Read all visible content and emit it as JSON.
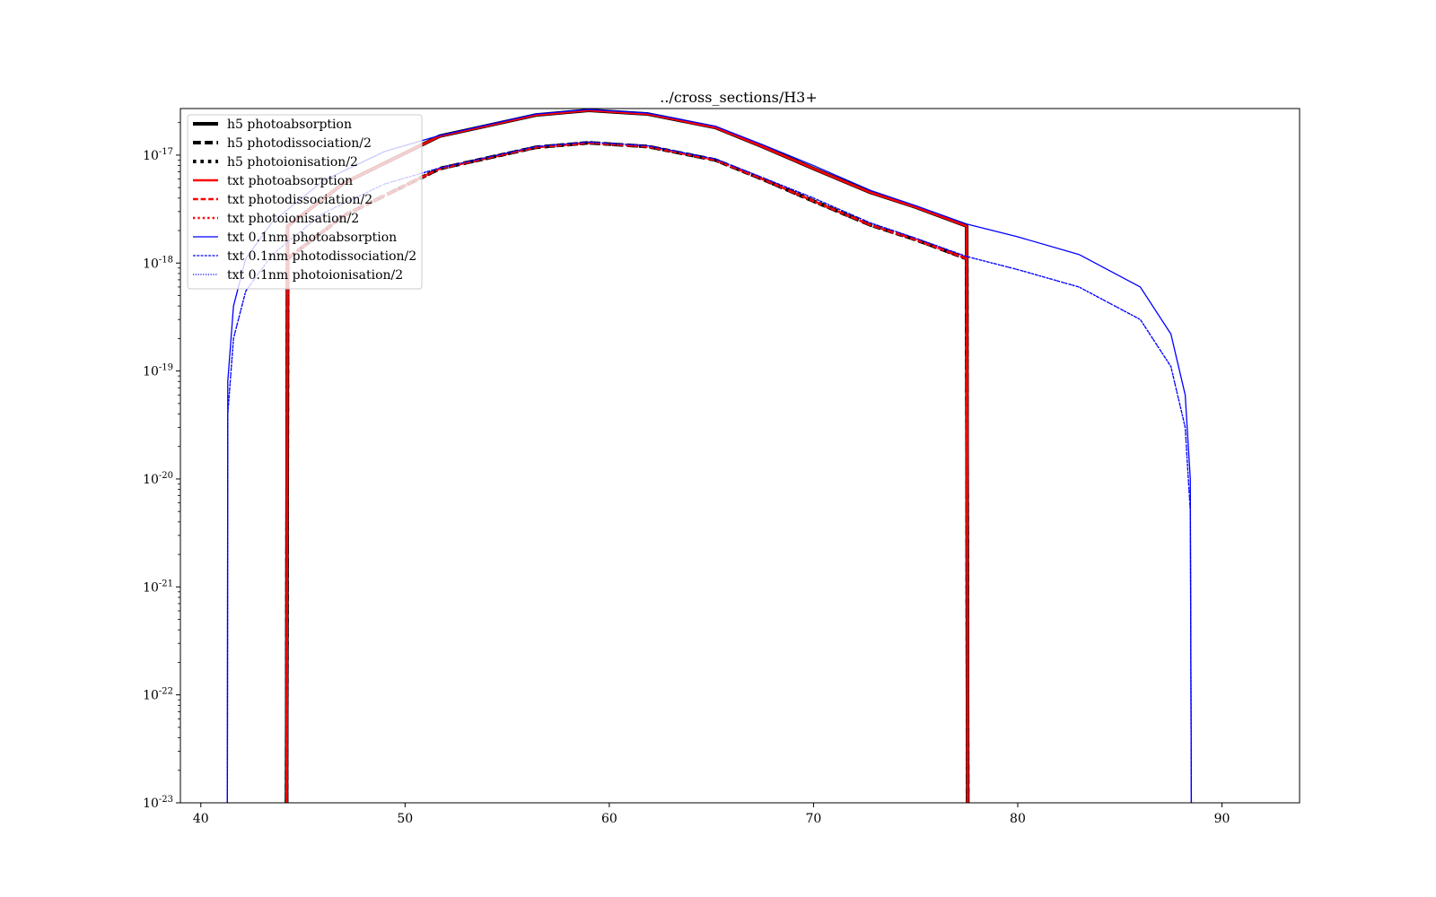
{
  "chart_data": {
    "type": "line",
    "title": "../cross_sections/H3+",
    "xlabel": "",
    "ylabel": "",
    "xlim": [
      39,
      93.8
    ],
    "ylim": [
      1e-23,
      2.7e-17
    ],
    "yscale": "log",
    "grid": false,
    "legend_position": "upper-left",
    "x_ticks": [
      40,
      50,
      60,
      70,
      80,
      90
    ],
    "y_ticks": [
      {
        "value": 1e-23,
        "base": "10",
        "exp": "-23"
      },
      {
        "value": 1e-22,
        "base": "10",
        "exp": "-22"
      },
      {
        "value": 1e-21,
        "base": "10",
        "exp": "-21"
      },
      {
        "value": 1e-20,
        "base": "10",
        "exp": "-20"
      },
      {
        "value": 1e-19,
        "base": "10",
        "exp": "-19"
      },
      {
        "value": 1e-18,
        "base": "10",
        "exp": "-18"
      },
      {
        "value": 1e-17,
        "base": "10",
        "exp": "-17"
      }
    ],
    "series": [
      {
        "name": "h5 photoabsorption",
        "color": "#000000",
        "style": "solid",
        "width": 4,
        "x": [
          44.2,
          44.25,
          47,
          51.7,
          56.4,
          59,
          61.9,
          65.2,
          67.5,
          70,
          72.8,
          75,
          77.5,
          77.55
        ],
        "y": [
          1e-23,
          2.2e-18,
          5.5e-18,
          1.5e-17,
          2.35e-17,
          2.6e-17,
          2.4e-17,
          1.8e-17,
          1.2e-17,
          7.5e-18,
          4.5e-18,
          3.3e-18,
          2.2e-18,
          1e-23
        ]
      },
      {
        "name": "h5 photodissociation/2",
        "color": "#000000",
        "style": "dashed",
        "width": 4,
        "x": [
          44.2,
          44.25,
          47,
          51.7,
          56.4,
          59,
          61.9,
          65.2,
          67.5,
          70,
          72.8,
          75,
          77.5,
          77.55
        ],
        "y": [
          1e-23,
          1.1e-18,
          2.75e-18,
          7.5e-18,
          1.18e-17,
          1.3e-17,
          1.2e-17,
          9e-18,
          6e-18,
          3.75e-18,
          2.25e-18,
          1.65e-18,
          1.1e-18,
          1e-23
        ]
      },
      {
        "name": "h5 photoionisation/2",
        "color": "#000000",
        "style": "dotted",
        "width": 4,
        "x": [
          44.2,
          44.25,
          47,
          51.7,
          56.4,
          59,
          61.9,
          65.2,
          67.5,
          70,
          72.8,
          75,
          77.5,
          77.55
        ],
        "y": [
          1e-23,
          1.1e-18,
          2.75e-18,
          7.5e-18,
          1.18e-17,
          1.3e-17,
          1.2e-17,
          9e-18,
          6e-18,
          3.75e-18,
          2.25e-18,
          1.65e-18,
          1.1e-18,
          1e-23
        ]
      },
      {
        "name": "txt photoabsorption",
        "color": "#ff0000",
        "style": "solid",
        "width": 2.6,
        "x": [
          44.2,
          44.25,
          47,
          51.7,
          56.4,
          59,
          61.9,
          65.2,
          67.5,
          70,
          72.8,
          75,
          77.5,
          77.55
        ],
        "y": [
          1e-23,
          2.2e-18,
          5.5e-18,
          1.5e-17,
          2.35e-17,
          2.6e-17,
          2.4e-17,
          1.8e-17,
          1.2e-17,
          7.5e-18,
          4.5e-18,
          3.3e-18,
          2.2e-18,
          1e-23
        ]
      },
      {
        "name": "txt photodissociation/2",
        "color": "#ff0000",
        "style": "dashed",
        "width": 2.6,
        "x": [
          44.2,
          44.25,
          47,
          51.7,
          56.4,
          59,
          61.9,
          65.2,
          67.5,
          70,
          72.8,
          75,
          77.5,
          77.55
        ],
        "y": [
          1e-23,
          1.1e-18,
          2.75e-18,
          7.5e-18,
          1.18e-17,
          1.3e-17,
          1.2e-17,
          9e-18,
          6e-18,
          3.75e-18,
          2.25e-18,
          1.65e-18,
          1.1e-18,
          1e-23
        ]
      },
      {
        "name": "txt photoionisation/2",
        "color": "#ff0000",
        "style": "dotted",
        "width": 2.6,
        "x": [
          44.2,
          44.25,
          47,
          51.7,
          56.4,
          59,
          61.9,
          65.2,
          67.5,
          70,
          72.8,
          75,
          77.5,
          77.55
        ],
        "y": [
          1e-23,
          1.1e-18,
          2.75e-18,
          7.5e-18,
          1.18e-17,
          1.3e-17,
          1.2e-17,
          9e-18,
          6e-18,
          3.75e-18,
          2.25e-18,
          1.65e-18,
          1.1e-18,
          1e-23
        ]
      },
      {
        "name": "txt 0.1nm photoabsorption",
        "color": "#0000ff",
        "style": "solid",
        "width": 1.3,
        "x": [
          41.3,
          41.32,
          41.6,
          42.2,
          43.5,
          46,
          49,
          51.7,
          56.4,
          59,
          61.9,
          65.2,
          67.5,
          70,
          72.8,
          75,
          77.5,
          80,
          83,
          86,
          87.5,
          88.2,
          88.45,
          88.5
        ],
        "y": [
          1e-23,
          8e-20,
          4e-19,
          1.1e-18,
          2.4e-18,
          5.8e-18,
          1.08e-17,
          1.52e-17,
          2.4e-17,
          2.65e-17,
          2.45e-17,
          1.85e-17,
          1.25e-17,
          8e-18,
          4.7e-18,
          3.4e-18,
          2.3e-18,
          1.75e-18,
          1.2e-18,
          6e-19,
          2.2e-19,
          6e-20,
          1e-20,
          1e-23
        ]
      },
      {
        "name": "txt 0.1nm photodissociation/2",
        "color": "#0000ff",
        "style": "dashed",
        "width": 1.3,
        "x": [
          41.3,
          41.32,
          41.6,
          42.2,
          43.5,
          46,
          49,
          51.7,
          56.4,
          59,
          61.9,
          65.2,
          67.5,
          70,
          72.8,
          75,
          77.5,
          80,
          83,
          86,
          87.5,
          88.2,
          88.45,
          88.5
        ],
        "y": [
          1e-23,
          4e-20,
          2e-19,
          5.5e-19,
          1.2e-18,
          2.9e-18,
          5.4e-18,
          7.6e-18,
          1.2e-17,
          1.32e-17,
          1.22e-17,
          9.2e-18,
          6.2e-18,
          4e-18,
          2.35e-18,
          1.7e-18,
          1.15e-18,
          8.7e-19,
          6e-19,
          3e-19,
          1.1e-19,
          3e-20,
          5e-21,
          1e-23
        ]
      },
      {
        "name": "txt 0.1nm photoionisation/2",
        "color": "#0000ff",
        "style": "dotted",
        "width": 1.3,
        "x": [
          41.3,
          41.32,
          41.6,
          42.2,
          43.5,
          46,
          49,
          51.7,
          56.4,
          59,
          61.9,
          65.2,
          67.5,
          70,
          72.8,
          75,
          77.5,
          80,
          83,
          86,
          87.5,
          88.2,
          88.45,
          88.5
        ],
        "y": [
          1e-23,
          4e-20,
          2e-19,
          5.5e-19,
          1.2e-18,
          2.9e-18,
          5.4e-18,
          7.6e-18,
          1.2e-17,
          1.32e-17,
          1.22e-17,
          9.2e-18,
          6.2e-18,
          4e-18,
          2.35e-18,
          1.7e-18,
          1.15e-18,
          8.7e-19,
          6e-19,
          3e-19,
          1.1e-19,
          3e-20,
          5e-21,
          1e-23
        ]
      }
    ]
  }
}
